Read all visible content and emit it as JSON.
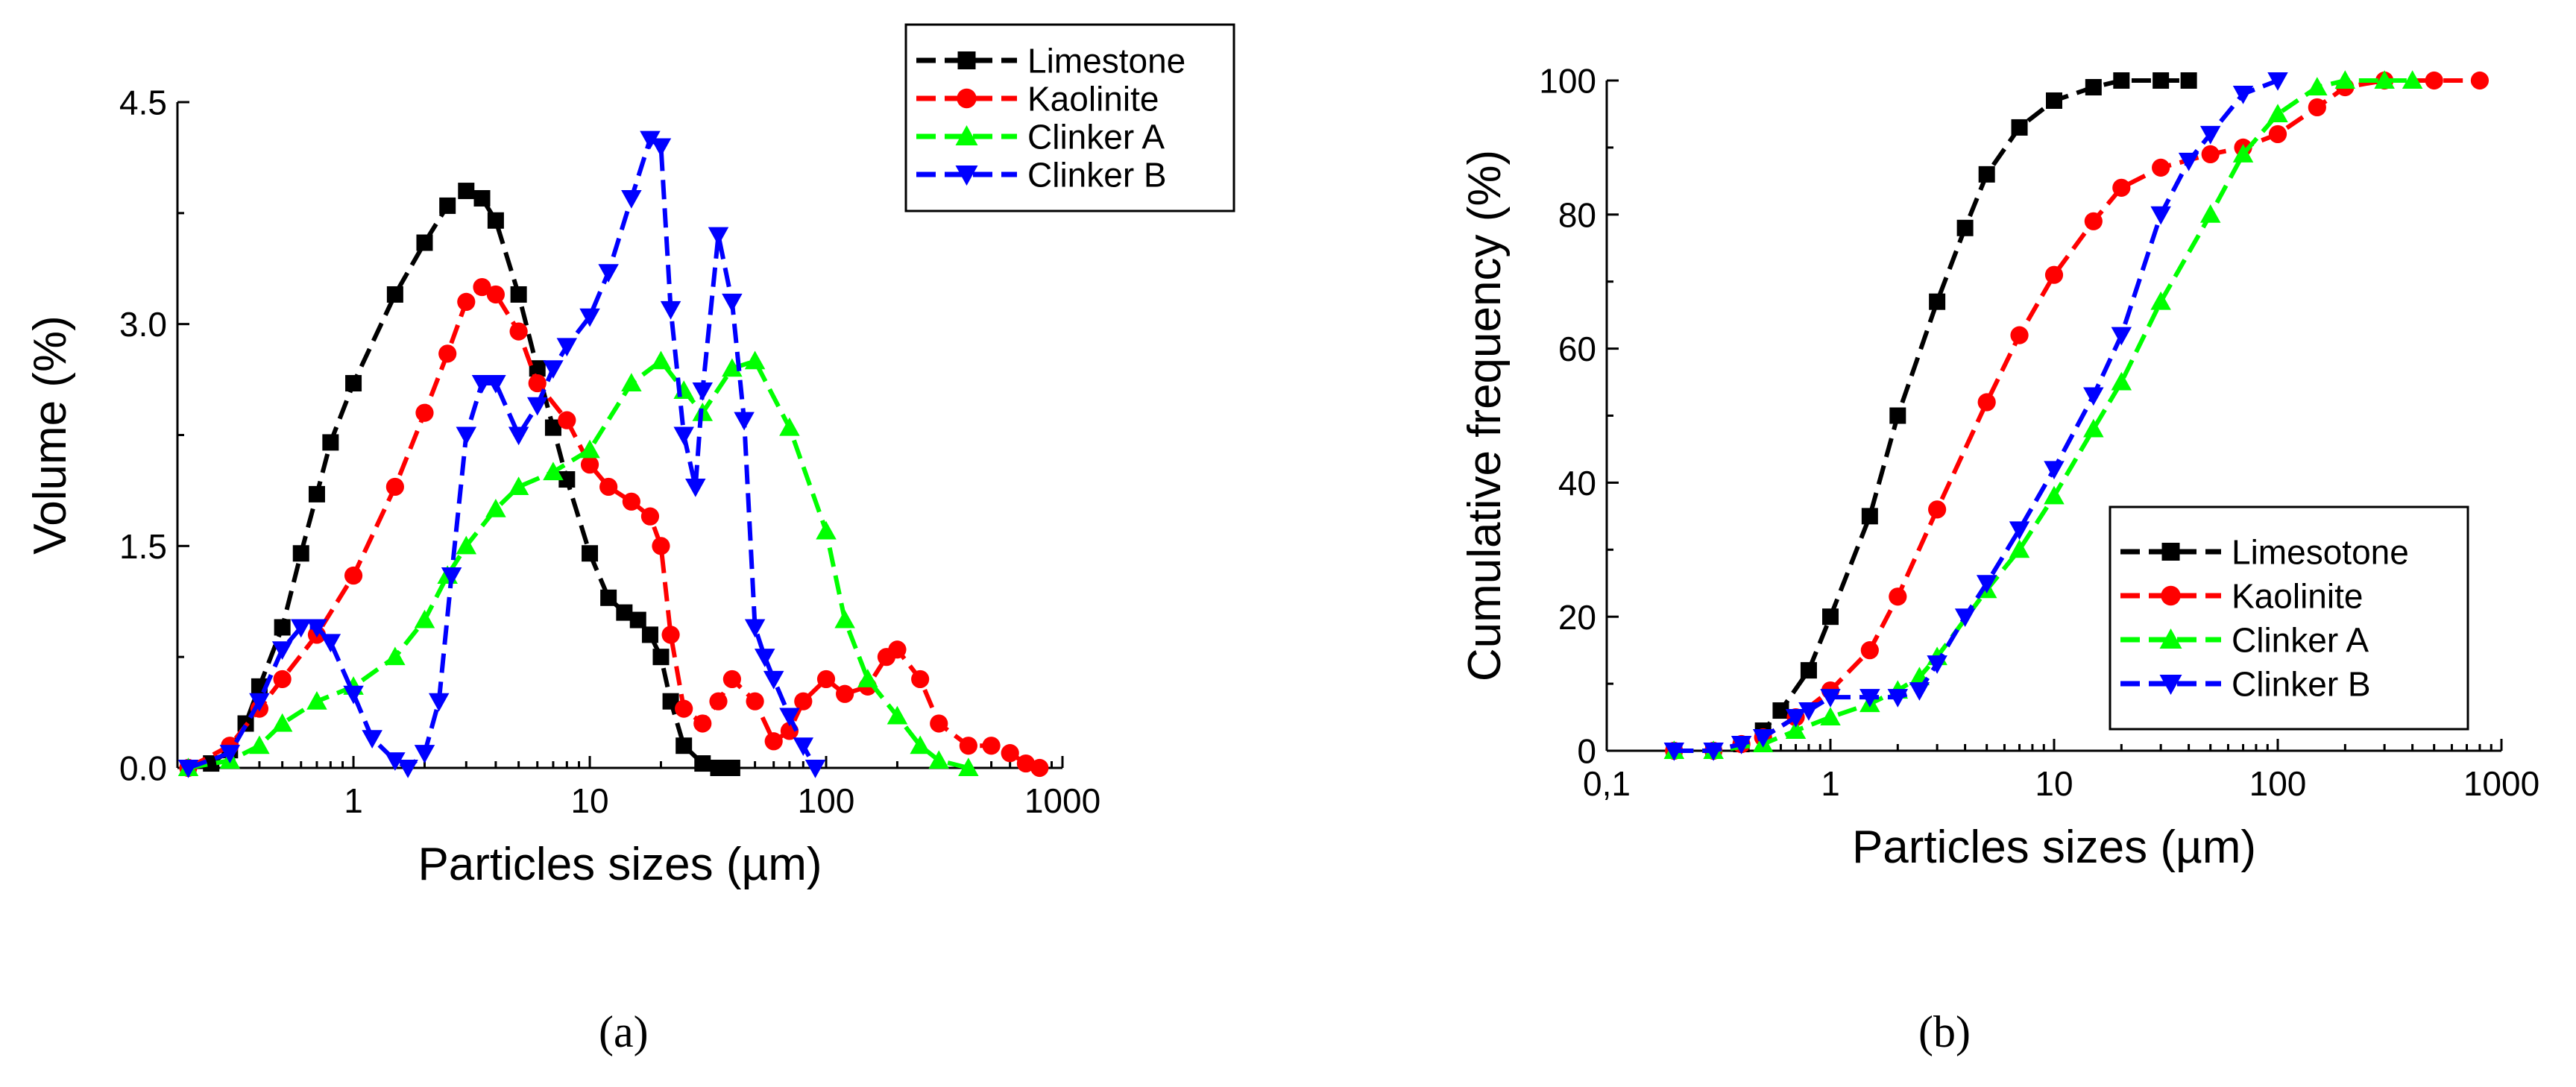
{
  "figure": {
    "panel_labels": [
      "(a)",
      "(b)"
    ]
  },
  "chart_data": [
    {
      "type": "line",
      "panel": "(a)",
      "title": "",
      "xlabel": "Particles sizes (µm)",
      "ylabel": "Volume (%)",
      "xscale": "log",
      "xlim": [
        0.18,
        1000
      ],
      "ylim": [
        0,
        4.5
      ],
      "xticks": [
        {
          "v": 1,
          "label": "1"
        },
        {
          "v": 10,
          "label": "10"
        },
        {
          "v": 100,
          "label": "100"
        },
        {
          "v": 1000,
          "label": "1000"
        }
      ],
      "yticks": [
        {
          "v": 0,
          "label": "0.0"
        },
        {
          "v": 1.5,
          "label": "1.5"
        },
        {
          "v": 3,
          "label": "3.0"
        },
        {
          "v": 4.5,
          "label": "4.5"
        }
      ],
      "legend_position": "top-right",
      "series": [
        {
          "name": "Limestone",
          "color": "#000000",
          "marker": "square",
          "x": [
            0.2,
            0.25,
            0.3,
            0.35,
            0.4,
            0.5,
            0.6,
            0.7,
            0.8,
            1,
            1.5,
            2,
            2.5,
            3,
            3.5,
            4,
            5,
            6,
            7,
            8,
            10,
            12,
            14,
            16,
            18,
            20,
            22,
            25,
            30,
            35,
            40
          ],
          "y": [
            0,
            0.03,
            0.12,
            0.3,
            0.55,
            0.95,
            1.45,
            1.85,
            2.2,
            2.6,
            3.2,
            3.55,
            3.8,
            3.9,
            3.85,
            3.7,
            3.2,
            2.7,
            2.3,
            1.95,
            1.45,
            1.15,
            1.05,
            1.0,
            0.9,
            0.75,
            0.45,
            0.15,
            0.03,
            0,
            0
          ]
        },
        {
          "name": "Kaolinite",
          "color": "#ff0000",
          "marker": "circle",
          "x": [
            0.2,
            0.3,
            0.4,
            0.5,
            0.7,
            1,
            1.5,
            2,
            2.5,
            3,
            3.5,
            4,
            5,
            6,
            8,
            10,
            12,
            15,
            18,
            20,
            22,
            25,
            30,
            35,
            40,
            50,
            60,
            70,
            80,
            100,
            120,
            150,
            180,
            200,
            250,
            300,
            400,
            500,
            600,
            700,
            800
          ],
          "y": [
            0,
            0.15,
            0.4,
            0.6,
            0.9,
            1.3,
            1.9,
            2.4,
            2.8,
            3.15,
            3.25,
            3.2,
            2.95,
            2.6,
            2.35,
            2.05,
            1.9,
            1.8,
            1.7,
            1.5,
            0.9,
            0.4,
            0.3,
            0.45,
            0.6,
            0.45,
            0.18,
            0.25,
            0.45,
            0.6,
            0.5,
            0.55,
            0.75,
            0.8,
            0.6,
            0.3,
            0.15,
            0.15,
            0.1,
            0.03,
            0
          ]
        },
        {
          "name": "Clinker A",
          "color": "#00ff00",
          "marker": "triangle-up",
          "x": [
            0.2,
            0.3,
            0.4,
            0.5,
            0.7,
            1,
            1.5,
            2,
            2.5,
            3,
            4,
            5,
            7,
            10,
            15,
            20,
            25,
            30,
            40,
            50,
            70,
            100,
            120,
            150,
            200,
            250,
            300,
            400
          ],
          "y": [
            0,
            0.05,
            0.15,
            0.3,
            0.45,
            0.55,
            0.75,
            1.0,
            1.3,
            1.5,
            1.75,
            1.9,
            2.0,
            2.15,
            2.6,
            2.75,
            2.55,
            2.4,
            2.7,
            2.75,
            2.3,
            1.6,
            1.0,
            0.6,
            0.35,
            0.15,
            0.05,
            0
          ]
        },
        {
          "name": "Clinker B",
          "color": "#0000ff",
          "marker": "triangle-down",
          "x": [
            0.2,
            0.3,
            0.4,
            0.5,
            0.6,
            0.7,
            0.8,
            1,
            1.2,
            1.5,
            1.7,
            2,
            2.3,
            2.6,
            3,
            3.5,
            4,
            5,
            6,
            7,
            8,
            10,
            12,
            15,
            18,
            20,
            22,
            25,
            28,
            30,
            35,
            40,
            45,
            50,
            55,
            60,
            70,
            80,
            90
          ],
          "y": [
            0,
            0.1,
            0.45,
            0.8,
            0.95,
            0.95,
            0.85,
            0.5,
            0.2,
            0.05,
            0,
            0.1,
            0.45,
            1.3,
            2.25,
            2.6,
            2.6,
            2.25,
            2.45,
            2.7,
            2.85,
            3.05,
            3.35,
            3.85,
            4.25,
            4.2,
            3.1,
            2.25,
            1.9,
            2.55,
            3.6,
            3.15,
            2.35,
            0.95,
            0.75,
            0.6,
            0.35,
            0.15,
            0
          ]
        }
      ]
    },
    {
      "type": "line",
      "panel": "(b)",
      "title": "",
      "xlabel": "Particles sizes (µm)",
      "ylabel": "Cumulative frequency (%)",
      "xscale": "log",
      "xlim": [
        0.1,
        1000
      ],
      "ylim": [
        0,
        100
      ],
      "xticks": [
        {
          "v": 0.1,
          "label": "0,1"
        },
        {
          "v": 1,
          "label": "1"
        },
        {
          "v": 10,
          "label": "10"
        },
        {
          "v": 100,
          "label": "100"
        },
        {
          "v": 1000,
          "label": "1000"
        }
      ],
      "yticks": [
        {
          "v": 0,
          "label": "0"
        },
        {
          "v": 20,
          "label": "20"
        },
        {
          "v": 40,
          "label": "40"
        },
        {
          "v": 60,
          "label": "60"
        },
        {
          "v": 80,
          "label": "80"
        },
        {
          "v": 100,
          "label": "100"
        }
      ],
      "legend_position": "bottom-right",
      "series": [
        {
          "name": "Limesotone",
          "color": "#000000",
          "marker": "square",
          "x": [
            0.2,
            0.3,
            0.4,
            0.5,
            0.6,
            0.8,
            1,
            1.5,
            2,
            3,
            4,
            5,
            7,
            10,
            15,
            20,
            30,
            40
          ],
          "y": [
            0,
            0,
            1,
            3,
            6,
            12,
            20,
            35,
            50,
            67,
            78,
            86,
            93,
            97,
            99,
            100,
            100,
            100
          ]
        },
        {
          "name": "Kaolinite",
          "color": "#ff0000",
          "marker": "circle",
          "x": [
            0.2,
            0.3,
            0.4,
            0.5,
            0.7,
            1,
            1.5,
            2,
            3,
            5,
            7,
            10,
            15,
            20,
            30,
            50,
            70,
            100,
            150,
            200,
            300,
            500,
            800
          ],
          "y": [
            0,
            0,
            1,
            2,
            5,
            9,
            15,
            23,
            36,
            52,
            62,
            71,
            79,
            84,
            87,
            89,
            90,
            92,
            96,
            99,
            100,
            100,
            100
          ]
        },
        {
          "name": "Clinker A",
          "color": "#00ff00",
          "marker": "triangle-up",
          "x": [
            0.2,
            0.3,
            0.5,
            0.7,
            1,
            1.5,
            2,
            2.5,
            3,
            5,
            7,
            10,
            15,
            20,
            30,
            50,
            70,
            100,
            150,
            200,
            300,
            400
          ],
          "y": [
            0,
            0,
            1,
            3,
            5,
            7,
            9,
            11,
            14,
            24,
            30,
            38,
            48,
            55,
            67,
            80,
            89,
            95,
            99,
            100,
            100,
            100
          ]
        },
        {
          "name": "Clinker B",
          "color": "#0000ff",
          "marker": "triangle-down",
          "x": [
            0.2,
            0.3,
            0.4,
            0.5,
            0.7,
            0.8,
            1,
            1.5,
            2,
            2.5,
            3,
            4,
            5,
            7,
            10,
            15,
            20,
            30,
            40,
            50,
            70,
            100
          ],
          "y": [
            0,
            0,
            1,
            2,
            5,
            6,
            8,
            8,
            8,
            9,
            13,
            20,
            25,
            33,
            42,
            53,
            62,
            80,
            88,
            92,
            98,
            100
          ]
        }
      ]
    }
  ]
}
